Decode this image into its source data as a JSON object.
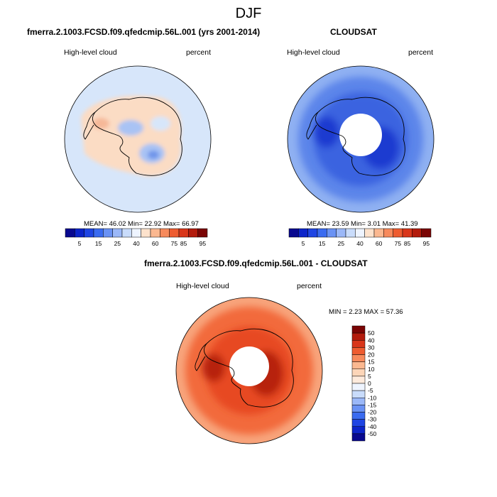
{
  "figure": {
    "title": "DJF"
  },
  "panels": {
    "model": {
      "title": "fmerra.2.1003.FCSD.f09.qfedcmip.56L.001 (yrs 2001-2014)",
      "variable": "High-level cloud",
      "units": "percent",
      "stats": "MEAN=  46.02  Min=  22.92  Max=  66.97"
    },
    "obs": {
      "title": "CLOUDSAT",
      "variable": "High-level cloud",
      "units": "percent",
      "stats": "MEAN=  23.59  Min=   3.01  Max=  41.39"
    },
    "diff": {
      "title": "fmerra.2.1003.FCSD.f09.qfedcmip.56L.001 - CLOUDSAT",
      "variable": "High-level cloud",
      "units": "percent",
      "stats": "MIN =  2.23 MAX =  57.36"
    }
  },
  "colorbars": {
    "abs_ticks": [
      "5",
      "15",
      "25",
      "40",
      "60",
      "75",
      "85",
      "95"
    ],
    "abs_colors": [
      "#08088f",
      "#0c24c9",
      "#1f45e3",
      "#3a6bf0",
      "#6a92f4",
      "#9bb8f8",
      "#c9dcfb",
      "#eef4ff",
      "#fde2cc",
      "#fbb890",
      "#f78a5c",
      "#ee5c30",
      "#d9361a",
      "#b31b0c",
      "#7a0404"
    ],
    "diff_ticks": [
      "50",
      "40",
      "30",
      "20",
      "15",
      "10",
      "5",
      "0",
      "-5",
      "-10",
      "-15",
      "-20",
      "-30",
      "-40",
      "-50"
    ],
    "diff_colors": [
      "#7a0404",
      "#b31b0c",
      "#d9361a",
      "#ee5c30",
      "#f78a5c",
      "#fbb890",
      "#fcd5b8",
      "#fdeadc",
      "#eef4ff",
      "#c9dcfb",
      "#9bb8f8",
      "#6a92f4",
      "#3a6bf0",
      "#1f45e3",
      "#0c24c9",
      "#08088f"
    ]
  },
  "map_colors": {
    "model_base": "#d7e6fa",
    "model_warm": "#fbdcc4",
    "model_warm2": "#f6b898",
    "model_cool": "#a9c3f4",
    "model_cool2": "#6f95ea",
    "obs_base": "#5c85ea",
    "obs_light": "#8fb0f2",
    "obs_mid": "#3b63e0",
    "obs_dark": "#1a3ad0",
    "diff_base": "#f26a3c",
    "diff_light": "#f8a47c",
    "diff_mid": "#e74a24",
    "diff_dark": "#b7240e",
    "hole": "#ffffff",
    "coast": "#000000"
  }
}
